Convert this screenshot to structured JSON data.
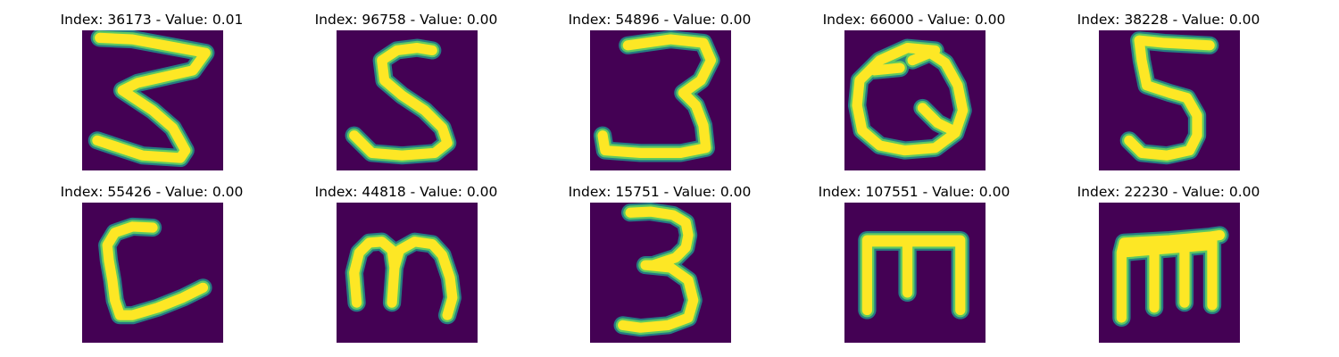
{
  "colors": {
    "background": "#440154",
    "stroke_core": "#fde725",
    "stroke_mid": "#5ec962",
    "stroke_edge": "#21918c"
  },
  "panels": [
    {
      "title": "Index: 36173 - Value: 0.01",
      "glyph": "three-z"
    },
    {
      "title": "Index: 96758 - Value: 0.00",
      "glyph": "s"
    },
    {
      "title": "Index: 54896 - Value: 0.00",
      "glyph": "three-flat"
    },
    {
      "title": "Index: 66000 - Value: 0.00",
      "glyph": "q"
    },
    {
      "title": "Index: 38228 - Value: 0.00",
      "glyph": "five"
    },
    {
      "title": "Index: 55426 - Value: 0.00",
      "glyph": "l-curved"
    },
    {
      "title": "Index: 44818 - Value: 0.00",
      "glyph": "m-rounded"
    },
    {
      "title": "Index: 15751 - Value: 0.00",
      "glyph": "three"
    },
    {
      "title": "Index: 107551 - Value: 0.00",
      "glyph": "m-bold"
    },
    {
      "title": "Index: 22230 - Value: 0.00",
      "glyph": "m-bold-wide"
    }
  ]
}
